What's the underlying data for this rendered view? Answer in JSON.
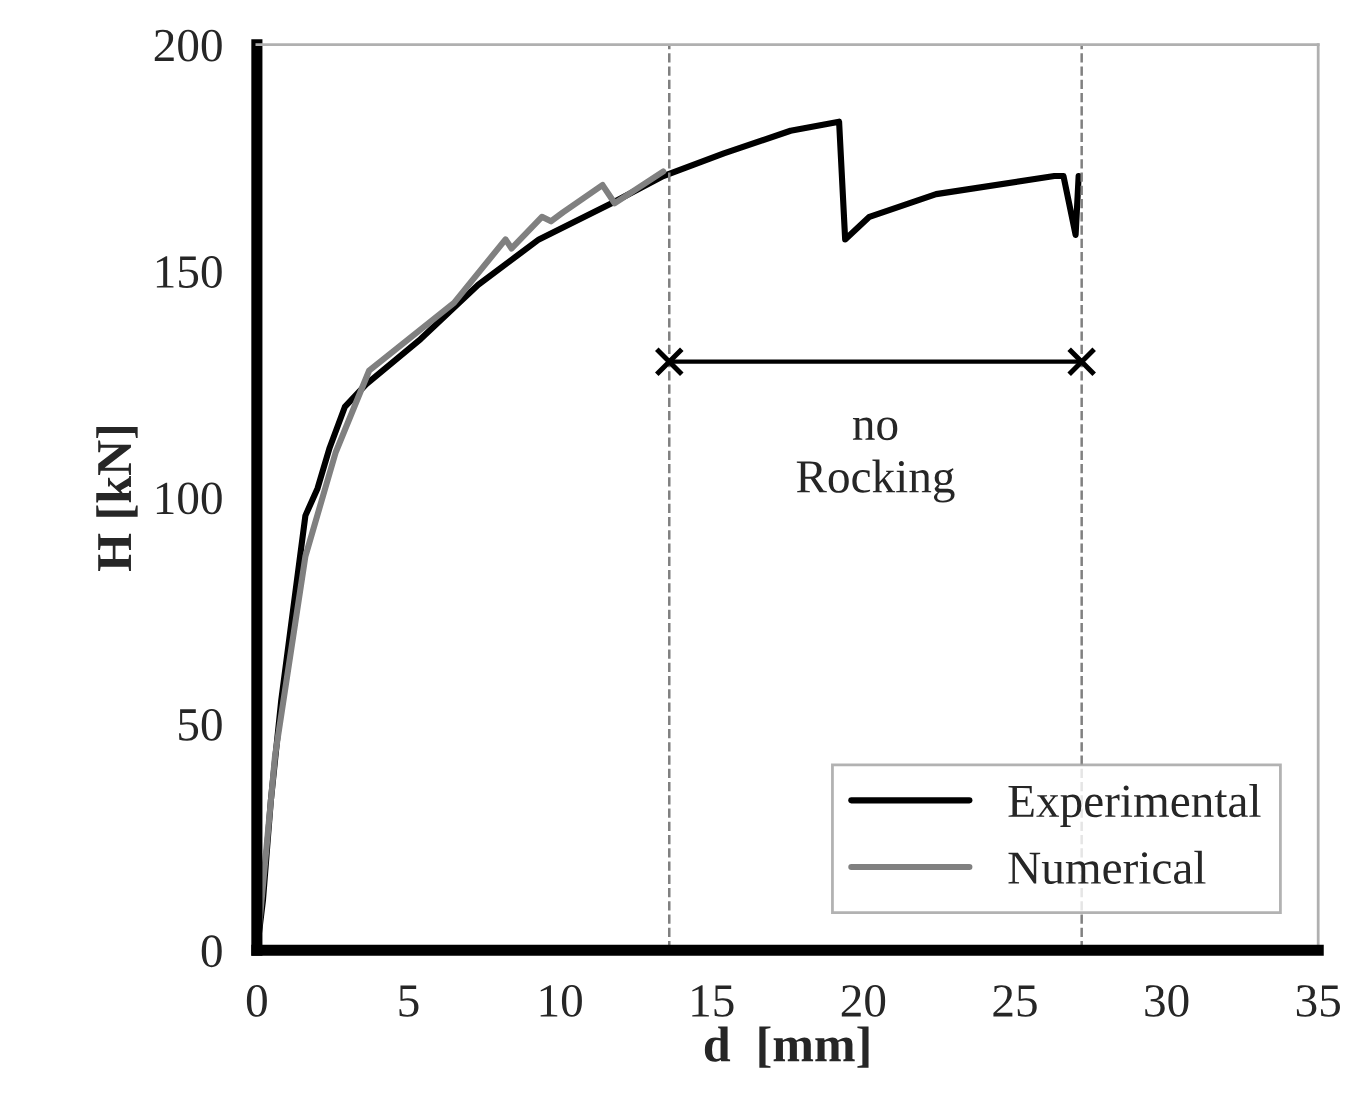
{
  "chart_data": {
    "type": "line",
    "xlabel": "d  [mm]",
    "ylabel": "H [kN]",
    "xlim": [
      0,
      35
    ],
    "ylim": [
      0,
      200
    ],
    "xticks": [
      0,
      5,
      10,
      15,
      20,
      25,
      30,
      35
    ],
    "yticks": [
      0,
      50,
      100,
      150,
      200
    ],
    "grid": false,
    "legend": "bottom right",
    "marker": "none",
    "line_style": "solid",
    "series": [
      {
        "name": "Experimental",
        "color": "#000000",
        "x": [
          0,
          0.2,
          0.46,
          0.8,
          1.6,
          2.0,
          2.4,
          2.9,
          3.6,
          5.4,
          7.3,
          9.3,
          11.7,
          13.4,
          15.4,
          17.6,
          19.2,
          19.4,
          20.2,
          22.4,
          26.3,
          26.6,
          27.0,
          27.1
        ],
        "values": [
          0,
          11,
          33,
          55,
          96,
          102,
          111,
          120,
          125,
          135,
          147,
          157,
          165,
          171,
          176,
          181,
          183,
          157,
          162,
          167,
          171,
          171,
          158,
          171
        ]
      },
      {
        "name": "Numerical",
        "color": "#808080",
        "x": [
          0,
          0.6,
          1.6,
          2.6,
          3.7,
          6.5,
          8.2,
          8.4,
          9.4,
          9.7,
          10.1,
          11.4,
          11.8,
          13.4
        ],
        "values": [
          0,
          43,
          87,
          110,
          128,
          143,
          157,
          155,
          162,
          161,
          163,
          169,
          165,
          172
        ]
      }
    ],
    "ref_lines": [
      {
        "axis": "x",
        "value": 13.6,
        "color": "#808080",
        "line_style": "dashed"
      },
      {
        "axis": "x",
        "value": 27.2,
        "color": "#808080",
        "line_style": "dashed"
      }
    ],
    "annotations": [
      "no\nRocking"
    ]
  }
}
